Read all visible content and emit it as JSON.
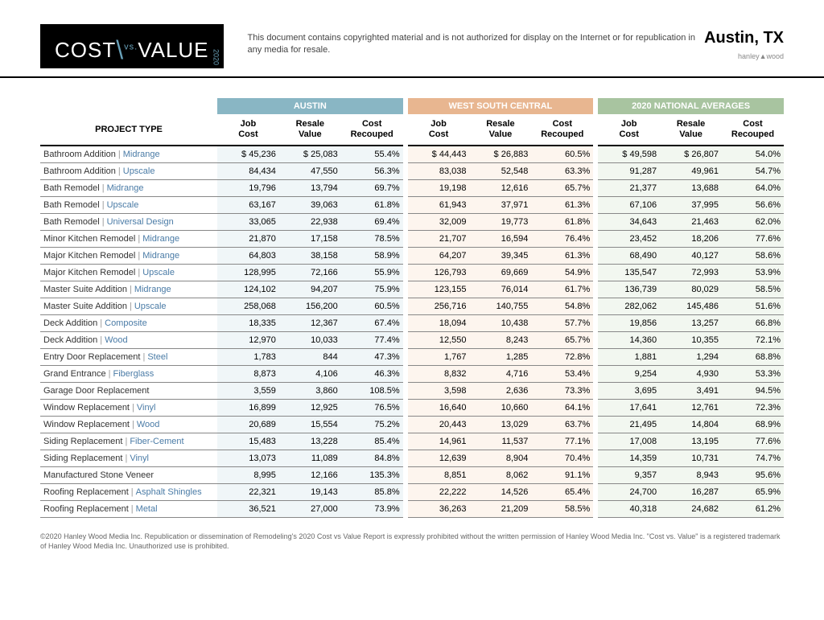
{
  "header": {
    "logo_cost": "COST",
    "logo_vs": "vs.",
    "logo_value": "VALUE",
    "logo_year": "2020",
    "disclaimer": "This document contains copyrighted material and is not authorized for display on the Internet or for republication in any media for resale.",
    "city": "Austin, TX",
    "brand": "hanley▲wood"
  },
  "groups": [
    {
      "label": "AUSTIN",
      "class": "grp-austin",
      "bg": "bg-austin"
    },
    {
      "label": "WEST SOUTH CENTRAL",
      "class": "grp-wsc",
      "bg": "bg-wsc"
    },
    {
      "label": "2020 NATIONAL AVERAGES",
      "class": "grp-nat",
      "bg": "bg-nat"
    }
  ],
  "columns": {
    "project_type": "PROJECT TYPE",
    "job_cost_l1": "Job",
    "job_cost_l2": "Cost",
    "resale_l1": "Resale",
    "resale_l2": "Value",
    "recoup_l1": "Cost",
    "recoup_l2": "Recouped"
  },
  "rows": [
    {
      "name": "Bathroom Addition",
      "tier": "Midrange",
      "a": [
        "$ 45,236",
        "$ 25,083",
        "55.4%"
      ],
      "w": [
        "$ 44,443",
        "$ 26,883",
        "60.5%"
      ],
      "n": [
        "$ 49,598",
        "$ 26,807",
        "54.0%"
      ]
    },
    {
      "name": "Bathroom Addition",
      "tier": "Upscale",
      "a": [
        "84,434",
        "47,550",
        "56.3%"
      ],
      "w": [
        "83,038",
        "52,548",
        "63.3%"
      ],
      "n": [
        "91,287",
        "49,961",
        "54.7%"
      ]
    },
    {
      "name": "Bath Remodel",
      "tier": "Midrange",
      "a": [
        "19,796",
        "13,794",
        "69.7%"
      ],
      "w": [
        "19,198",
        "12,616",
        "65.7%"
      ],
      "n": [
        "21,377",
        "13,688",
        "64.0%"
      ]
    },
    {
      "name": "Bath Remodel",
      "tier": "Upscale",
      "a": [
        "63,167",
        "39,063",
        "61.8%"
      ],
      "w": [
        "61,943",
        "37,971",
        "61.3%"
      ],
      "n": [
        "67,106",
        "37,995",
        "56.6%"
      ]
    },
    {
      "name": "Bath Remodel",
      "tier": "Universal Design",
      "a": [
        "33,065",
        "22,938",
        "69.4%"
      ],
      "w": [
        "32,009",
        "19,773",
        "61.8%"
      ],
      "n": [
        "34,643",
        "21,463",
        "62.0%"
      ]
    },
    {
      "name": "Minor Kitchen Remodel",
      "tier": "Midrange",
      "a": [
        "21,870",
        "17,158",
        "78.5%"
      ],
      "w": [
        "21,707",
        "16,594",
        "76.4%"
      ],
      "n": [
        "23,452",
        "18,206",
        "77.6%"
      ]
    },
    {
      "name": "Major Kitchen Remodel",
      "tier": "Midrange",
      "a": [
        "64,803",
        "38,158",
        "58.9%"
      ],
      "w": [
        "64,207",
        "39,345",
        "61.3%"
      ],
      "n": [
        "68,490",
        "40,127",
        "58.6%"
      ]
    },
    {
      "name": "Major Kitchen Remodel",
      "tier": "Upscale",
      "a": [
        "128,995",
        "72,166",
        "55.9%"
      ],
      "w": [
        "126,793",
        "69,669",
        "54.9%"
      ],
      "n": [
        "135,547",
        "72,993",
        "53.9%"
      ]
    },
    {
      "name": "Master Suite Addition",
      "tier": "Midrange",
      "a": [
        "124,102",
        "94,207",
        "75.9%"
      ],
      "w": [
        "123,155",
        "76,014",
        "61.7%"
      ],
      "n": [
        "136,739",
        "80,029",
        "58.5%"
      ]
    },
    {
      "name": "Master Suite Addition",
      "tier": "Upscale",
      "a": [
        "258,068",
        "156,200",
        "60.5%"
      ],
      "w": [
        "256,716",
        "140,755",
        "54.8%"
      ],
      "n": [
        "282,062",
        "145,486",
        "51.6%"
      ]
    },
    {
      "name": "Deck Addition",
      "tier": "Composite",
      "a": [
        "18,335",
        "12,367",
        "67.4%"
      ],
      "w": [
        "18,094",
        "10,438",
        "57.7%"
      ],
      "n": [
        "19,856",
        "13,257",
        "66.8%"
      ]
    },
    {
      "name": "Deck Addition",
      "tier": "Wood",
      "a": [
        "12,970",
        "10,033",
        "77.4%"
      ],
      "w": [
        "12,550",
        "8,243",
        "65.7%"
      ],
      "n": [
        "14,360",
        "10,355",
        "72.1%"
      ]
    },
    {
      "name": "Entry Door Replacement",
      "tier": "Steel",
      "a": [
        "1,783",
        "844",
        "47.3%"
      ],
      "w": [
        "1,767",
        "1,285",
        "72.8%"
      ],
      "n": [
        "1,881",
        "1,294",
        "68.8%"
      ]
    },
    {
      "name": "Grand Entrance",
      "tier": "Fiberglass",
      "a": [
        "8,873",
        "4,106",
        "46.3%"
      ],
      "w": [
        "8,832",
        "4,716",
        "53.4%"
      ],
      "n": [
        "9,254",
        "4,930",
        "53.3%"
      ]
    },
    {
      "name": "Garage Door Replacement",
      "tier": "",
      "a": [
        "3,559",
        "3,860",
        "108.5%"
      ],
      "w": [
        "3,598",
        "2,636",
        "73.3%"
      ],
      "n": [
        "3,695",
        "3,491",
        "94.5%"
      ]
    },
    {
      "name": "Window Replacement",
      "tier": "Vinyl",
      "a": [
        "16,899",
        "12,925",
        "76.5%"
      ],
      "w": [
        "16,640",
        "10,660",
        "64.1%"
      ],
      "n": [
        "17,641",
        "12,761",
        "72.3%"
      ]
    },
    {
      "name": "Window Replacement",
      "tier": "Wood",
      "a": [
        "20,689",
        "15,554",
        "75.2%"
      ],
      "w": [
        "20,443",
        "13,029",
        "63.7%"
      ],
      "n": [
        "21,495",
        "14,804",
        "68.9%"
      ]
    },
    {
      "name": "Siding Replacement",
      "tier": "Fiber-Cement",
      "a": [
        "15,483",
        "13,228",
        "85.4%"
      ],
      "w": [
        "14,961",
        "11,537",
        "77.1%"
      ],
      "n": [
        "17,008",
        "13,195",
        "77.6%"
      ]
    },
    {
      "name": "Siding Replacement",
      "tier": "Vinyl",
      "a": [
        "13,073",
        "11,089",
        "84.8%"
      ],
      "w": [
        "12,639",
        "8,904",
        "70.4%"
      ],
      "n": [
        "14,359",
        "10,731",
        "74.7%"
      ]
    },
    {
      "name": "Manufactured Stone Veneer",
      "tier": "",
      "a": [
        "8,995",
        "12,166",
        "135.3%"
      ],
      "w": [
        "8,851",
        "8,062",
        "91.1%"
      ],
      "n": [
        "9,357",
        "8,943",
        "95.6%"
      ]
    },
    {
      "name": "Roofing Replacement",
      "tier": "Asphalt Shingles",
      "a": [
        "22,321",
        "19,143",
        "85.8%"
      ],
      "w": [
        "22,222",
        "14,526",
        "65.4%"
      ],
      "n": [
        "24,700",
        "16,287",
        "65.9%"
      ]
    },
    {
      "name": "Roofing Replacement",
      "tier": "Metal",
      "a": [
        "36,521",
        "27,000",
        "73.9%"
      ],
      "w": [
        "36,263",
        "21,209",
        "58.5%"
      ],
      "n": [
        "40,318",
        "24,682",
        "61.2%"
      ]
    }
  ],
  "footer": "©2020 Hanley Wood Media Inc. Republication or dissemination of Remodeling's 2020 Cost vs Value Report is expressly prohibited without the written permission of Hanley Wood Media Inc. \"Cost vs. Value\" is a registered trademark of Hanley Wood Media Inc. Unauthorized use is prohibited."
}
